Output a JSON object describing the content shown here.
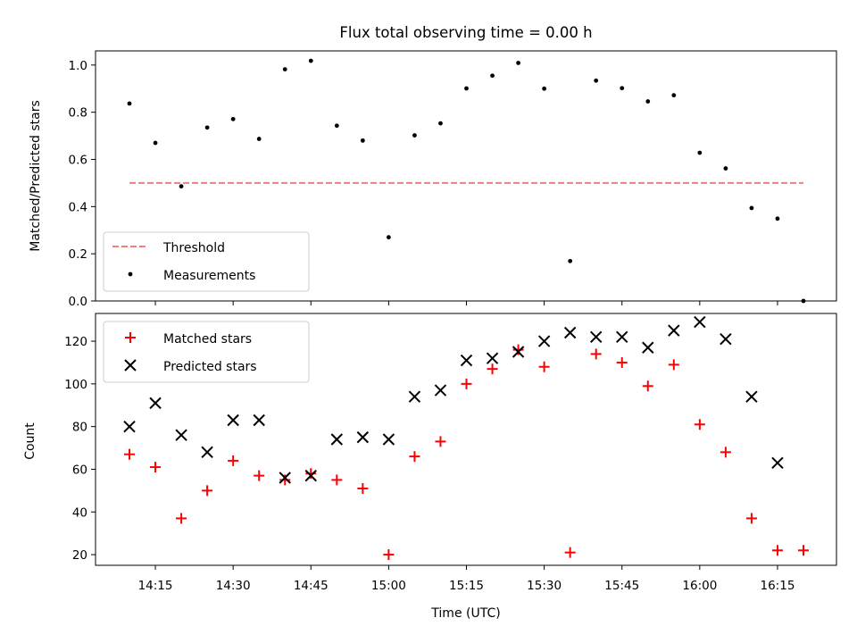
{
  "chart_data": [
    {
      "type": "scatter",
      "title": "Flux total observing time = 0.00 h",
      "xlabel": "",
      "ylabel": "Matched/Predicted stars",
      "ylim": [
        0,
        1.06
      ],
      "yticks": [
        "0.0",
        "0.2",
        "0.4",
        "0.6",
        "0.8",
        "1.0"
      ],
      "legend": "lower-left",
      "series": [
        {
          "name": "Threshold",
          "style": "dashed-line",
          "color": "#f08080",
          "x": [
            "14:10",
            "16:20"
          ],
          "values": [
            0.5,
            0.5
          ]
        },
        {
          "name": "Measurements",
          "style": "dot",
          "color": "#000000",
          "x": [
            "14:10",
            "14:15",
            "14:20",
            "14:25",
            "14:30",
            "14:35",
            "14:40",
            "14:45",
            "14:50",
            "14:55",
            "15:00",
            "15:05",
            "15:10",
            "15:15",
            "15:20",
            "15:25",
            "15:30",
            "15:35",
            "15:40",
            "15:45",
            "15:50",
            "15:55",
            "16:00",
            "16:05",
            "16:10",
            "16:15",
            "16:20"
          ],
          "values": [
            0.837,
            0.67,
            0.486,
            0.735,
            0.771,
            0.687,
            0.982,
            1.018,
            0.743,
            0.68,
            0.27,
            0.702,
            0.753,
            0.901,
            0.955,
            1.009,
            0.9,
            0.169,
            0.934,
            0.902,
            0.846,
            0.872,
            0.628,
            0.562,
            0.394,
            0.349,
            0.0
          ]
        }
      ]
    },
    {
      "type": "scatter",
      "title": "",
      "xlabel": "Time (UTC)",
      "ylabel": "Count",
      "ylim": [
        15,
        133
      ],
      "yticks": [
        "20",
        "40",
        "60",
        "80",
        "100",
        "120"
      ],
      "xticks": [
        "14:15",
        "14:30",
        "14:45",
        "15:00",
        "15:15",
        "15:30",
        "15:45",
        "16:00",
        "16:15"
      ],
      "legend": "upper-left",
      "series": [
        {
          "name": "Matched stars",
          "marker": "plus",
          "color": "#ff0000",
          "x": [
            "14:10",
            "14:15",
            "14:20",
            "14:25",
            "14:30",
            "14:35",
            "14:40",
            "14:45",
            "14:50",
            "14:55",
            "15:00",
            "15:05",
            "15:10",
            "15:15",
            "15:20",
            "15:25",
            "15:30",
            "15:35",
            "15:40",
            "15:45",
            "15:50",
            "15:55",
            "16:00",
            "16:05",
            "16:10",
            "16:15",
            "16:20"
          ],
          "values": [
            67,
            61,
            37,
            50,
            64,
            57,
            55,
            58,
            55,
            51,
            20,
            66,
            73,
            100,
            107,
            116,
            108,
            21,
            114,
            110,
            99,
            109,
            81,
            68,
            37,
            22,
            22
          ]
        },
        {
          "name": "Predicted stars",
          "marker": "x",
          "color": "#000000",
          "x": [
            "14:10",
            "14:15",
            "14:20",
            "14:25",
            "14:30",
            "14:35",
            "14:40",
            "14:45",
            "14:50",
            "14:55",
            "15:00",
            "15:05",
            "15:10",
            "15:15",
            "15:20",
            "15:25",
            "15:30",
            "15:35",
            "15:40",
            "15:45",
            "15:50",
            "15:55",
            "16:00",
            "16:05",
            "16:10",
            "16:15"
          ],
          "values": [
            80,
            91,
            76,
            68,
            83,
            83,
            56,
            57,
            74,
            75,
            74,
            94,
            97,
            111,
            112,
            115,
            120,
            124,
            122,
            122,
            117,
            125,
            129,
            121,
            94,
            63
          ]
        }
      ]
    }
  ]
}
